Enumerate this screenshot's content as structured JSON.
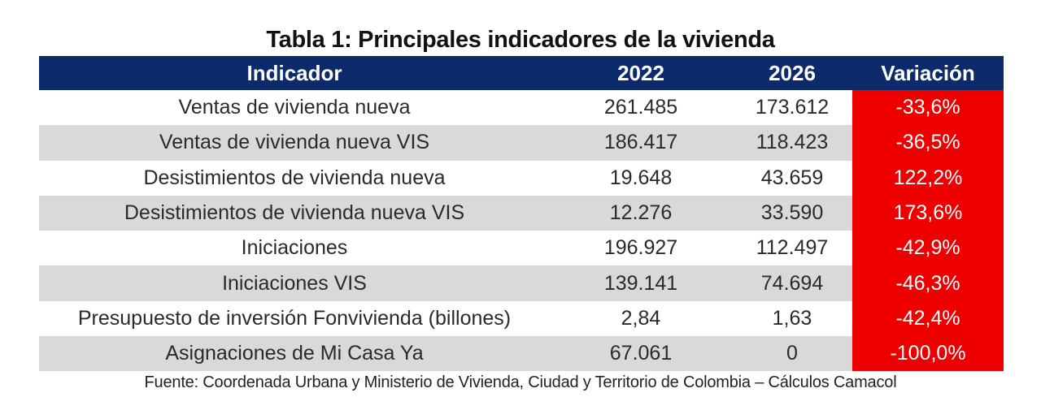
{
  "title": "Tabla 1: Principales indicadores de la vivienda",
  "table": {
    "headers": [
      "Indicador",
      "2022",
      "2026",
      "Variación"
    ],
    "rows": [
      [
        "Ventas de vivienda nueva",
        "261.485",
        "173.612",
        "-33,6%"
      ],
      [
        "Ventas de vivienda nueva VIS",
        "186.417",
        "118.423",
        "-36,5%"
      ],
      [
        "Desistimientos de vivienda nueva",
        "19.648",
        "43.659",
        "122,2%"
      ],
      [
        "Desistimientos de vivienda nueva VIS",
        "12.276",
        "33.590",
        "173,6%"
      ],
      [
        "Iniciaciones",
        "196.927",
        "112.497",
        "-42,9%"
      ],
      [
        "Iniciaciones VIS",
        "139.141",
        "74.694",
        "-46,3%"
      ],
      [
        "Presupuesto de inversión Fonvivienda (billones)",
        "2,84",
        "1,63",
        "-42,4%"
      ],
      [
        "Asignaciones de Mi Casa Ya",
        "67.061",
        "0",
        "-100,0%"
      ]
    ]
  },
  "source": "Fuente: Coordenada Urbana y Ministerio de Vivienda, Ciudad y Territorio de Colombia – Cálculos Camacol",
  "colors": {
    "header_bg": "#0d2a6b",
    "row_shade": "#d9d9d9",
    "variation_bg": "#ee0000"
  }
}
